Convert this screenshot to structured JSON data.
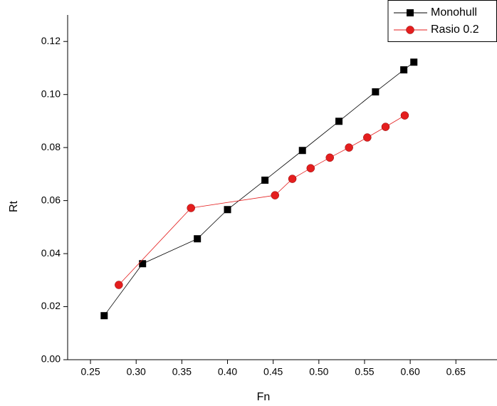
{
  "chart_data": {
    "type": "line",
    "xlabel": "Fn",
    "ylabel": "Rt",
    "xlim": [
      0.225,
      0.695
    ],
    "ylim": [
      0,
      0.13
    ],
    "xticks": [
      0.25,
      {
        "value": 0.3,
        "label": "0.30"
      },
      0.35,
      {
        "value": 0.4,
        "label": "0.40"
      },
      0.45,
      {
        "value": 0.5,
        "label": "0.50"
      },
      0.55,
      {
        "value": 0.6,
        "label": "0.60"
      },
      0.65
    ],
    "yticks": [
      {
        "value": 0,
        "label": "0.00"
      },
      {
        "value": 0.02,
        "label": "0.02"
      },
      {
        "value": 0.04,
        "label": "0.04"
      },
      {
        "value": 0.06,
        "label": "0.06"
      },
      {
        "value": 0.08,
        "label": "0.08"
      },
      {
        "value": 0.1,
        "label": "0.10"
      },
      {
        "value": 0.12,
        "label": "0.12"
      }
    ],
    "legend": "top-right",
    "series": [
      {
        "name": "Monohull",
        "color": "#000000",
        "marker": "square",
        "x": [
          0.265,
          0.307,
          0.367,
          0.4,
          0.441,
          0.482,
          0.522,
          0.562,
          0.593,
          0.604
        ],
        "values": [
          0.0166,
          0.0362,
          0.0456,
          0.0566,
          0.0677,
          0.0789,
          0.0899,
          0.101,
          0.1093,
          0.1122
        ]
      },
      {
        "name": "Rasio 0.2",
        "color": "#e41e1e",
        "marker": "circle",
        "x": [
          0.281,
          0.36,
          0.452,
          0.471,
          0.491,
          0.512,
          0.533,
          0.553,
          0.573,
          0.594
        ],
        "values": [
          0.0282,
          0.0572,
          0.062,
          0.0682,
          0.0722,
          0.0762,
          0.08,
          0.0838,
          0.0878,
          0.0921
        ]
      }
    ]
  }
}
